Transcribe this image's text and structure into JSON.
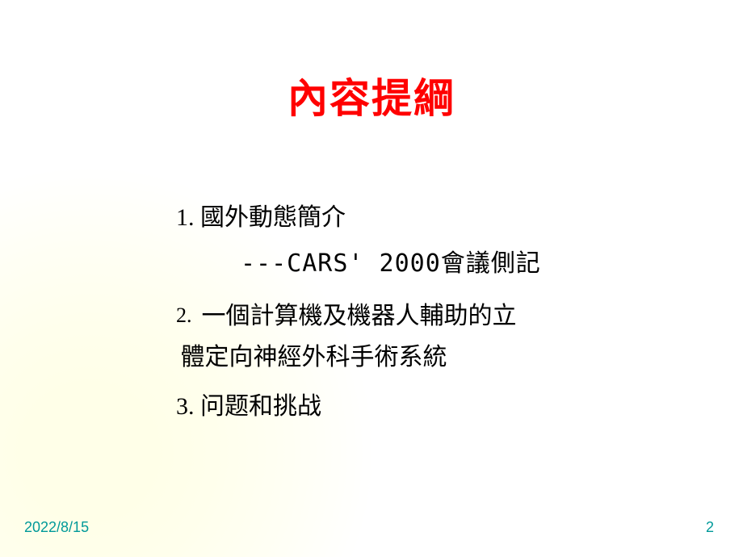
{
  "title": "內容提綱",
  "items": {
    "one": "1. 國外動態簡介",
    "one_sub": "---CARS' 2000會議側記",
    "two_num": "2.",
    "two_line1": "一個計算機及機器人輔助的立",
    "two_line2": "體定向神經外科手術系統",
    "three": "3. 问题和挑战"
  },
  "footer": {
    "date": "2022/8/15",
    "page": "2"
  },
  "colors": {
    "title": "#ff0000",
    "body": "#000000",
    "footer": "#009999",
    "bg_tint": "#ffffe8",
    "bg_base": "#ffffff"
  }
}
